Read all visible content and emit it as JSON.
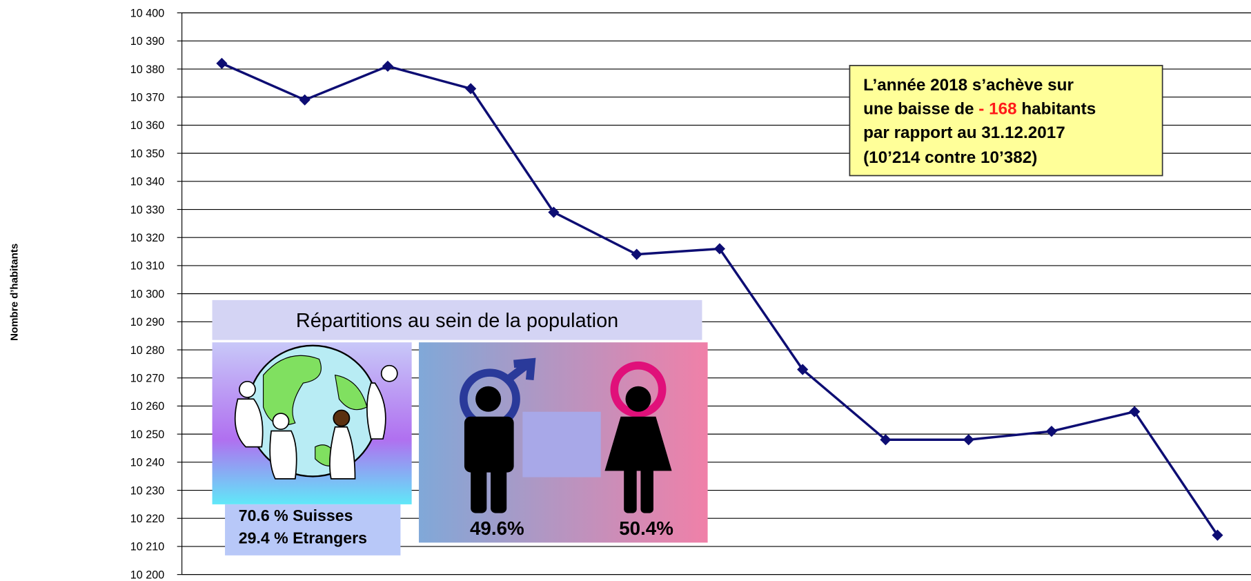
{
  "chart_data": {
    "type": "line",
    "y_axis_label": "Nombre d’habitants",
    "categories": [
      null,
      null,
      null,
      null,
      null,
      null,
      null,
      null,
      null,
      null,
      null,
      null,
      null
    ],
    "values": [
      10382,
      10369,
      10381,
      10373,
      10329,
      10314,
      10316,
      10273,
      10248,
      10248,
      10251,
      10258,
      10214
    ],
    "color": "#0d0d73",
    "ylim": [
      10200,
      10400
    ],
    "yticks": [
      {
        "value": 10200,
        "label": "10 200"
      },
      {
        "value": 10210,
        "label": "10 210"
      },
      {
        "value": 10220,
        "label": "10 220"
      },
      {
        "value": 10230,
        "label": "10 230"
      },
      {
        "value": 10240,
        "label": "10 240"
      },
      {
        "value": 10250,
        "label": "10 250"
      },
      {
        "value": 10260,
        "label": "10 260"
      },
      {
        "value": 10270,
        "label": "10 270"
      },
      {
        "value": 10280,
        "label": "10 280"
      },
      {
        "value": 10290,
        "label": "10 290"
      },
      {
        "value": 10300,
        "label": "10 300"
      },
      {
        "value": 10310,
        "label": "10 310"
      },
      {
        "value": 10320,
        "label": "10 320"
      },
      {
        "value": 10330,
        "label": "10 330"
      },
      {
        "value": 10340,
        "label": "10 340"
      },
      {
        "value": 10350,
        "label": "10 350"
      },
      {
        "value": 10360,
        "label": "10 360"
      },
      {
        "value": 10370,
        "label": "10 370"
      },
      {
        "value": 10380,
        "label": "10 380"
      },
      {
        "value": 10390,
        "label": "10 390"
      },
      {
        "value": 10400,
        "label": "10 400"
      }
    ],
    "grid": true,
    "annotation": {
      "line1": "L’année 2018 s’achève sur",
      "line2a": "une baisse de ",
      "line2b": "- 168",
      "line2c": " habitants",
      "line3": "par rapport au 31.12.2017",
      "line4": "(10’214 contre 10’382)"
    },
    "inset": {
      "title": "Répartitions au sein de la population",
      "swiss": "70.6 % Suisses",
      "foreign": "29.4 % Etrangers",
      "men": "49.6%",
      "women": "50.4%"
    }
  }
}
